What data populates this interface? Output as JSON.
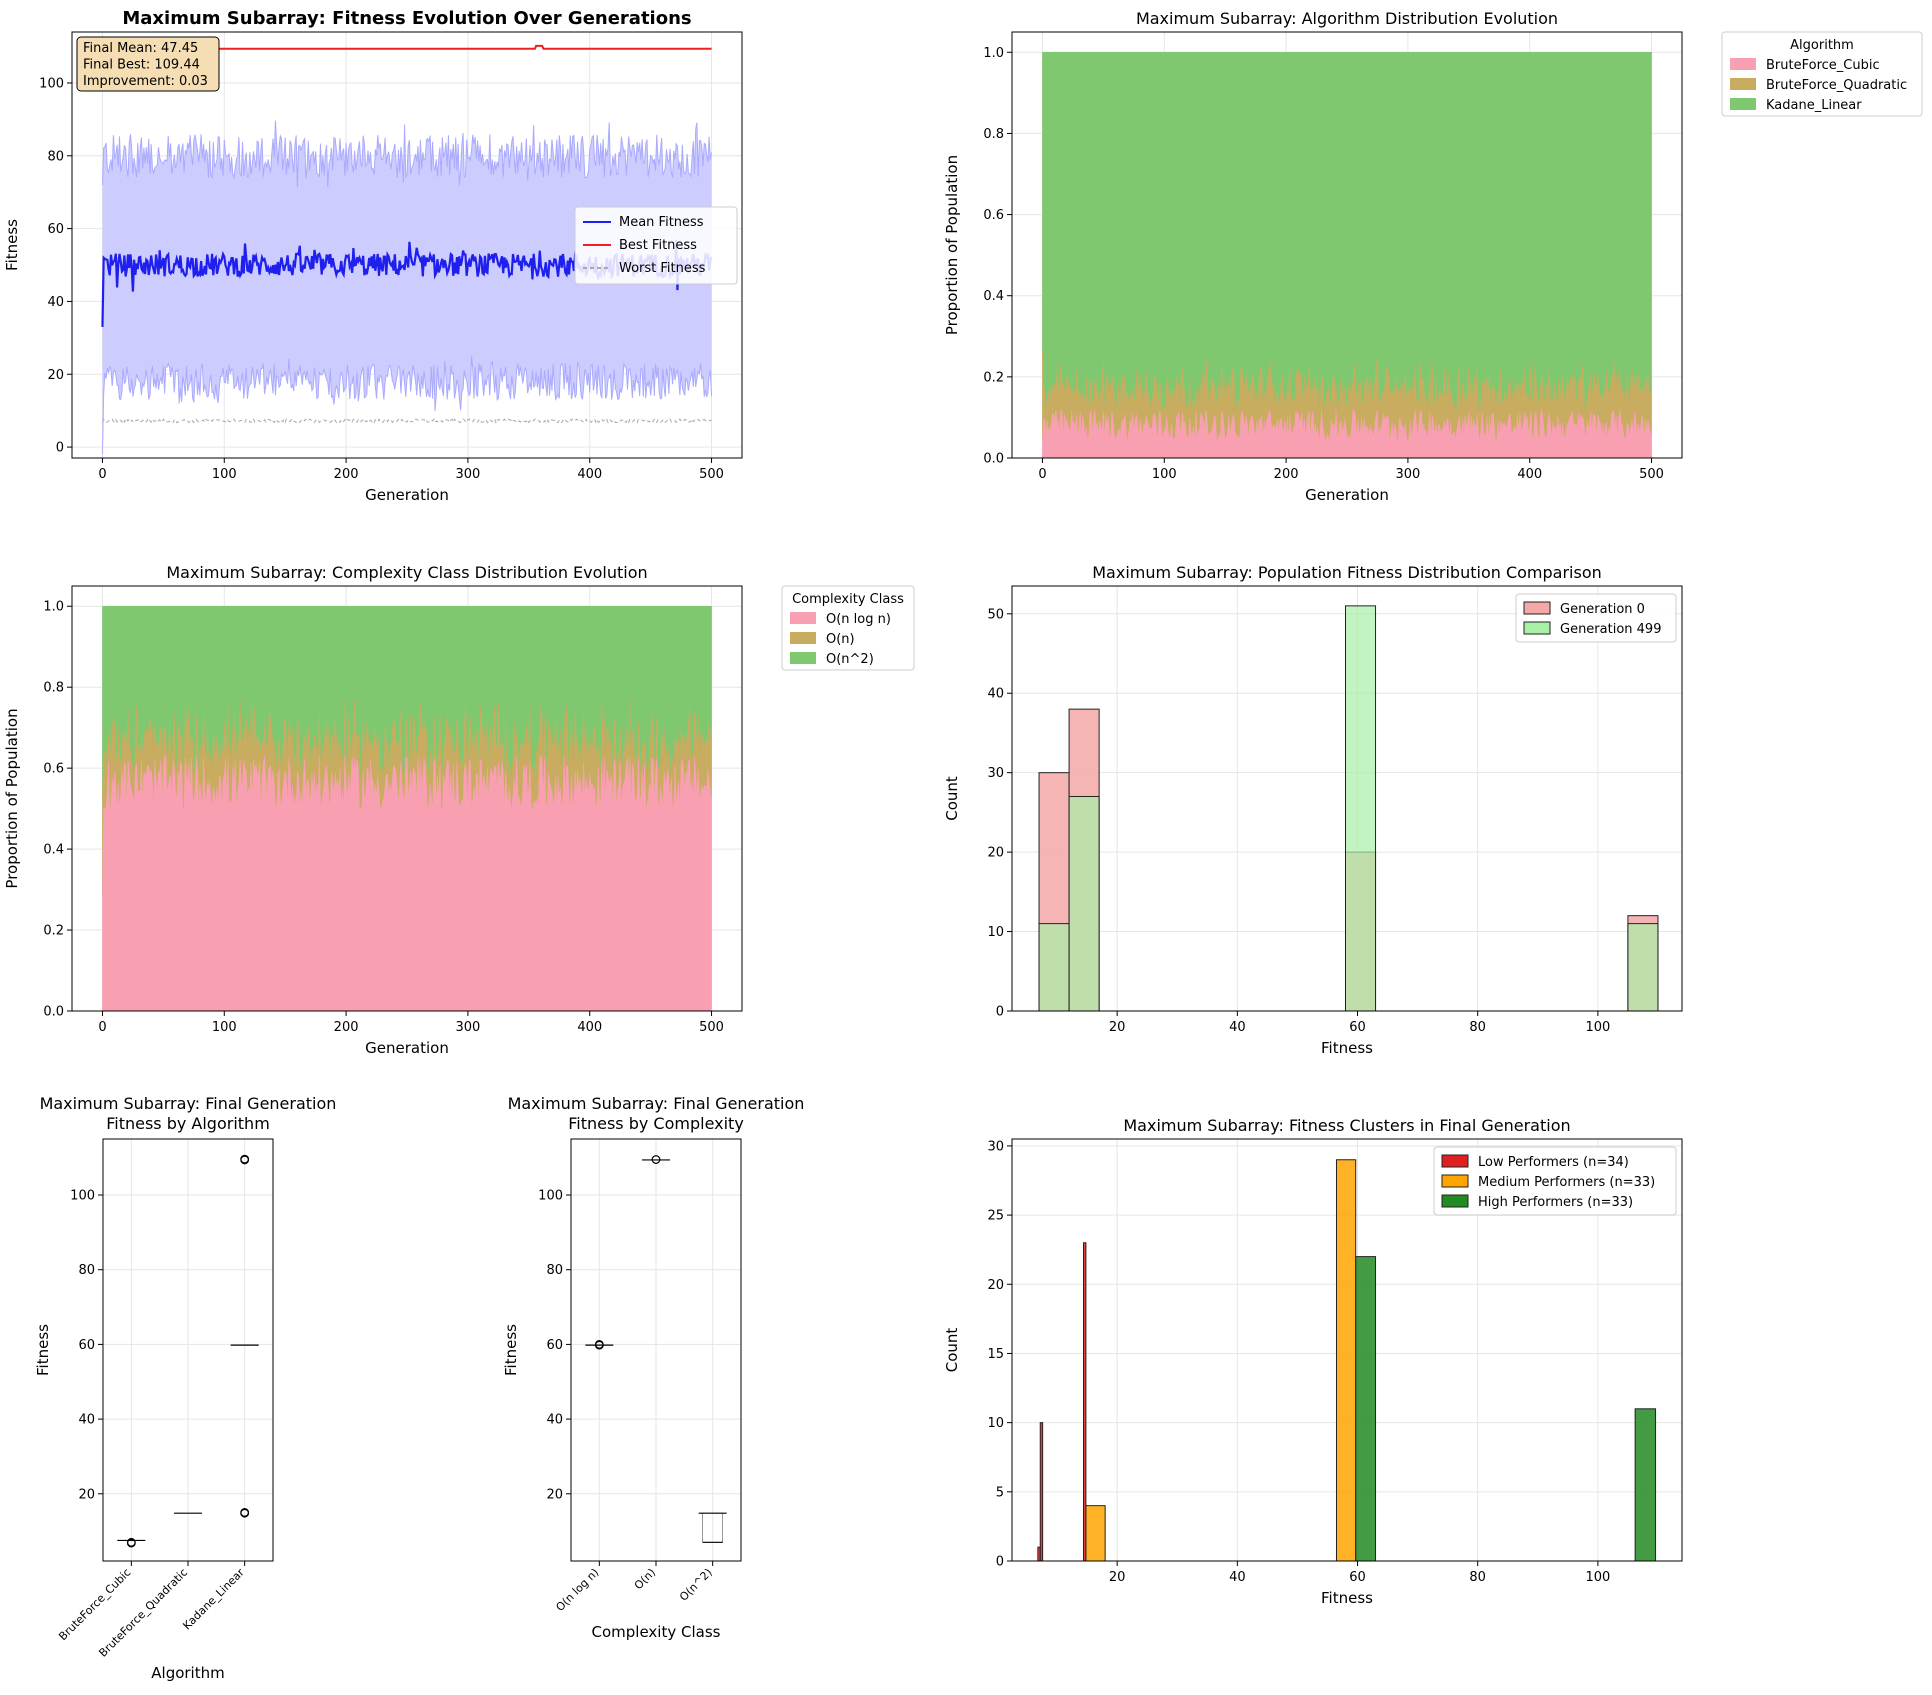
{
  "figure": {
    "panels": [
      {
        "id": "p1",
        "title": "Maximum Subarray: Fitness Evolution Over Generations",
        "xlabel": "Generation",
        "ylabel": "Fitness"
      },
      {
        "id": "p2",
        "title": "Maximum Subarray: Algorithm Distribution Evolution",
        "xlabel": "Generation",
        "ylabel": "Proportion of Population"
      },
      {
        "id": "p3",
        "title": "Maximum Subarray: Complexity Class Distribution Evolution",
        "xlabel": "Generation",
        "ylabel": "Proportion of Population"
      },
      {
        "id": "p4",
        "title": "Maximum Subarray: Population Fitness Distribution Comparison",
        "xlabel": "Fitness",
        "ylabel": "Count"
      },
      {
        "id": "p5",
        "title": "Maximum Subarray: Final Generation\nFitness by Algorithm",
        "xlabel": "Algorithm",
        "ylabel": "Fitness"
      },
      {
        "id": "p6",
        "title": "Maximum Subarray: Final Generation\nFitness by Complexity",
        "xlabel": "Complexity Class",
        "ylabel": "Fitness"
      },
      {
        "id": "p7",
        "title": "Maximum Subarray: Fitness Clusters in Final Generation",
        "xlabel": "Fitness",
        "ylabel": "Count"
      }
    ]
  },
  "chart_data": [
    {
      "type": "line",
      "title": "Maximum Subarray: Fitness Evolution Over Generations",
      "xlabel": "Generation",
      "ylabel": "Fitness",
      "xlim": [
        -25,
        525
      ],
      "ylim": [
        -3,
        114
      ],
      "xticks": [
        0,
        100,
        200,
        300,
        400,
        500
      ],
      "yticks": [
        0,
        20,
        40,
        60,
        80,
        100
      ],
      "grid": true,
      "legend": "center-right",
      "series": [
        {
          "name": "Mean Fitness",
          "color": "#2020ee",
          "approx_level": 50,
          "start": 33
        },
        {
          "name": "Best Fitness",
          "color": "#ee2020",
          "approx_level": 109.4
        },
        {
          "name": "Worst Fitness",
          "color": "#aaaaaa",
          "approx_level": 7
        }
      ],
      "band": {
        "lower_approx": 18,
        "upper_approx": 80,
        "color": "#ccccff"
      },
      "annotation": [
        "Final Mean: 47.45",
        "Final Best: 109.44",
        "Improvement: 0.03"
      ]
    },
    {
      "type": "area",
      "title": "Maximum Subarray: Algorithm Distribution Evolution",
      "xlabel": "Generation",
      "ylabel": "Proportion of Population",
      "xlim": [
        -25,
        525
      ],
      "ylim": [
        0,
        1.05
      ],
      "xticks": [
        0,
        100,
        200,
        300,
        400,
        500
      ],
      "yticks": [
        0.0,
        0.2,
        0.4,
        0.6,
        0.8,
        1.0
      ],
      "legend_title": "Algorithm",
      "legend": "outside-right",
      "series": [
        {
          "name": "BruteForce_Cubic",
          "color": "#f8a0b2",
          "approx_mean": 0.09
        },
        {
          "name": "BruteForce_Quadratic",
          "color": "#c8ac60",
          "approx_mean": 0.09
        },
        {
          "name": "Kadane_Linear",
          "color": "#80c870",
          "approx_mean": 0.82
        }
      ]
    },
    {
      "type": "area",
      "title": "Maximum Subarray: Complexity Class Distribution Evolution",
      "xlabel": "Generation",
      "ylabel": "Proportion of Population",
      "xlim": [
        -25,
        525
      ],
      "ylim": [
        0,
        1.05
      ],
      "xticks": [
        0,
        100,
        200,
        300,
        400,
        500
      ],
      "yticks": [
        0.0,
        0.2,
        0.4,
        0.6,
        0.8,
        1.0
      ],
      "legend_title": "Complexity Class",
      "legend": "outside-right",
      "series": [
        {
          "name": "O(n log n)",
          "color": "#f8a0b2",
          "approx_mean": 0.58
        },
        {
          "name": "O(n)",
          "color": "#c8ac60",
          "approx_mean": 0.09
        },
        {
          "name": "O(n^2)",
          "color": "#80c870",
          "approx_mean": 0.33
        }
      ]
    },
    {
      "type": "bar",
      "title": "Maximum Subarray: Population Fitness Distribution Comparison",
      "xlabel": "Fitness",
      "ylabel": "Count",
      "xlim": [
        2.5,
        114
      ],
      "ylim": [
        0,
        53.5
      ],
      "xticks": [
        20,
        40,
        60,
        80,
        100
      ],
      "yticks": [
        0,
        10,
        20,
        30,
        40,
        50
      ],
      "legend": "top-right",
      "series": [
        {
          "name": "Generation 0",
          "color": "#f4a8a8",
          "bins": [
            {
              "x0": 7,
              "x1": 12,
              "value": 30
            },
            {
              "x0": 12,
              "x1": 17,
              "value": 38
            },
            {
              "x0": 58,
              "x1": 63,
              "value": 20
            },
            {
              "x0": 105,
              "x1": 110,
              "value": 12
            }
          ]
        },
        {
          "name": "Generation 499",
          "color": "#a8f0a8",
          "bins": [
            {
              "x0": 7,
              "x1": 12,
              "value": 11
            },
            {
              "x0": 12,
              "x1": 17,
              "value": 27
            },
            {
              "x0": 58,
              "x1": 63,
              "value": 51
            },
            {
              "x0": 105,
              "x1": 110,
              "value": 11
            }
          ]
        }
      ]
    },
    {
      "type": "box",
      "title": "Maximum Subarray: Final Generation Fitness by Algorithm",
      "xlabel": "Algorithm",
      "ylabel": "Fitness",
      "ylim": [
        2,
        115
      ],
      "yticks": [
        20,
        40,
        60,
        80,
        100
      ],
      "categories": [
        "BruteForce_Cubic",
        "BruteForce_Quadratic",
        "Kadane_Linear"
      ],
      "boxes": [
        {
          "median": 7.5,
          "outliers": [
            7,
            6.8
          ]
        },
        {
          "median": 14.8,
          "outliers": []
        },
        {
          "median": 59.8,
          "outliers": [
            109.4,
            109.6,
            15,
            14.8
          ]
        }
      ]
    },
    {
      "type": "box",
      "title": "Maximum Subarray: Final Generation Fitness by Complexity",
      "xlabel": "Complexity Class",
      "ylabel": "Fitness",
      "ylim": [
        2,
        115
      ],
      "yticks": [
        20,
        40,
        60,
        80,
        100
      ],
      "categories": [
        "O(n log n)",
        "O(n)",
        "O(n^2)"
      ],
      "boxes": [
        {
          "median": 59.8,
          "outliers": [
            59.8,
            60
          ]
        },
        {
          "median": 109.4,
          "outliers": [
            109.5
          ]
        },
        {
          "median": 14.8,
          "q1": 7,
          "q3": 14.8,
          "outliers": []
        }
      ]
    },
    {
      "type": "bar",
      "title": "Maximum Subarray: Fitness Clusters in Final Generation",
      "xlabel": "Fitness",
      "ylabel": "Count",
      "xlim": [
        2.5,
        114
      ],
      "ylim": [
        0,
        30.5
      ],
      "xticks": [
        20,
        40,
        60,
        80,
        100
      ],
      "yticks": [
        0,
        5,
        10,
        15,
        20,
        25,
        30
      ],
      "legend": "top-right",
      "series": [
        {
          "name": "Low Performers (n=34)",
          "color": "#e02020",
          "bins": [
            {
              "x0": 6.8,
              "x1": 7.2,
              "value": 1
            },
            {
              "x0": 7.2,
              "x1": 7.6,
              "value": 10
            },
            {
              "x0": 14.4,
              "x1": 14.8,
              "value": 23
            }
          ]
        },
        {
          "name": "Medium Performers (n=33)",
          "color": "#ffa500",
          "bins": [
            {
              "x0": 14.8,
              "x1": 18.0,
              "value": 4
            },
            {
              "x0": 56.5,
              "x1": 59.7,
              "value": 29
            }
          ]
        },
        {
          "name": "High Performers (n=33)",
          "color": "#228b22",
          "bins": [
            {
              "x0": 59.7,
              "x1": 63.0,
              "value": 22
            },
            {
              "x0": 106.2,
              "x1": 109.6,
              "value": 11
            }
          ]
        }
      ]
    }
  ]
}
